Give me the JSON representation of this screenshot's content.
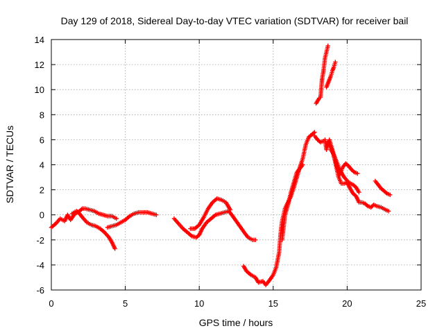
{
  "chart_data": {
    "type": "scatter",
    "title": "Day 129 of 2018, Sidereal Day-to-day VTEC variation (SDTVAR) for receiver bail",
    "xlabel": "GPS time / hours",
    "ylabel": "SDTVAR / TECUs",
    "xlim": [
      0,
      25
    ],
    "ylim": [
      -6,
      14
    ],
    "xticks": [
      "0",
      "5",
      "10",
      "15",
      "20",
      "25"
    ],
    "yticks": [
      "-6",
      "-4",
      "-2",
      "0",
      "2",
      "4",
      "6",
      "8",
      "10",
      "12",
      "14"
    ],
    "grid": true,
    "marker": "plus",
    "color": "#ff0000",
    "series": [
      {
        "name": "seg1",
        "points": [
          [
            0.0,
            -1.0
          ],
          [
            0.3,
            -0.7
          ],
          [
            0.6,
            -0.3
          ],
          [
            0.9,
            -0.5
          ],
          [
            1.1,
            0.0
          ],
          [
            1.3,
            -0.4
          ],
          [
            1.6,
            0.1
          ],
          [
            1.9,
            0.3
          ],
          [
            2.1,
            0.5
          ],
          [
            2.3,
            0.5
          ],
          [
            2.6,
            0.4
          ],
          [
            2.9,
            0.3
          ],
          [
            3.2,
            0.1
          ],
          [
            3.5,
            0.0
          ],
          [
            3.8,
            -0.1
          ],
          [
            4.1,
            -0.1
          ],
          [
            4.4,
            -0.3
          ]
        ]
      },
      {
        "name": "seg2",
        "points": [
          [
            1.4,
            0.1
          ],
          [
            1.7,
            0.3
          ],
          [
            1.9,
            0.1
          ],
          [
            2.1,
            -0.2
          ],
          [
            2.4,
            -0.6
          ],
          [
            2.7,
            -0.8
          ],
          [
            3.0,
            -0.9
          ],
          [
            3.3,
            -1.1
          ],
          [
            3.6,
            -1.4
          ],
          [
            3.9,
            -1.8
          ],
          [
            4.1,
            -2.2
          ],
          [
            4.3,
            -2.7
          ]
        ]
      },
      {
        "name": "seg3",
        "points": [
          [
            3.8,
            -1.0
          ],
          [
            4.1,
            -0.9
          ],
          [
            4.4,
            -0.8
          ],
          [
            4.7,
            -0.6
          ],
          [
            5.0,
            -0.4
          ],
          [
            5.3,
            -0.1
          ],
          [
            5.6,
            0.1
          ],
          [
            5.9,
            0.2
          ],
          [
            6.2,
            0.2
          ],
          [
            6.5,
            0.2
          ],
          [
            6.8,
            0.1
          ],
          [
            7.1,
            0.0
          ]
        ]
      },
      {
        "name": "seg4",
        "points": [
          [
            8.3,
            -0.3
          ],
          [
            8.6,
            -0.7
          ],
          [
            8.9,
            -1.1
          ],
          [
            9.2,
            -1.4
          ],
          [
            9.5,
            -1.7
          ],
          [
            9.8,
            -1.8
          ],
          [
            10.0,
            -1.6
          ],
          [
            10.2,
            -1.1
          ],
          [
            10.5,
            -0.6
          ],
          [
            10.8,
            -0.3
          ],
          [
            11.1,
            0.0
          ],
          [
            11.4,
            0.1
          ],
          [
            11.7,
            0.2
          ],
          [
            12.0,
            0.3
          ],
          [
            12.2,
            0.0
          ],
          [
            12.5,
            -0.5
          ],
          [
            12.8,
            -1.0
          ],
          [
            13.1,
            -1.5
          ],
          [
            13.3,
            -1.8
          ],
          [
            13.6,
            -2.0
          ],
          [
            13.8,
            -2.0
          ]
        ]
      },
      {
        "name": "seg5",
        "points": [
          [
            9.4,
            -1.1
          ],
          [
            9.7,
            -1.1
          ],
          [
            10.0,
            -0.8
          ],
          [
            10.3,
            -0.2
          ],
          [
            10.6,
            0.5
          ],
          [
            10.9,
            1.0
          ],
          [
            11.2,
            1.3
          ],
          [
            11.5,
            1.2
          ],
          [
            11.8,
            1.0
          ],
          [
            12.1,
            0.4
          ]
        ]
      },
      {
        "name": "seg6",
        "points": [
          [
            13.0,
            -4.1
          ],
          [
            13.2,
            -4.5
          ],
          [
            13.5,
            -4.8
          ],
          [
            13.8,
            -5.0
          ],
          [
            14.0,
            -5.4
          ],
          [
            14.3,
            -5.3
          ],
          [
            14.5,
            -5.6
          ],
          [
            14.7,
            -5.3
          ],
          [
            15.0,
            -4.8
          ],
          [
            15.2,
            -4.2
          ],
          [
            15.4,
            -3.0
          ],
          [
            15.5,
            -1.5
          ],
          [
            15.6,
            -0.5
          ],
          [
            15.8,
            0.5
          ],
          [
            16.0,
            1.0
          ],
          [
            16.2,
            1.5
          ],
          [
            16.4,
            2.2
          ],
          [
            16.6,
            3.0
          ],
          [
            16.8,
            3.8
          ],
          [
            17.0,
            4.5
          ],
          [
            17.2,
            5.6
          ],
          [
            17.4,
            6.2
          ],
          [
            17.6,
            6.4
          ],
          [
            17.8,
            6.6
          ]
        ]
      },
      {
        "name": "seg7",
        "points": [
          [
            15.6,
            -2.0
          ],
          [
            15.8,
            0.0
          ],
          [
            16.0,
            0.8
          ],
          [
            16.2,
            1.8
          ],
          [
            16.4,
            2.6
          ],
          [
            16.6,
            3.4
          ],
          [
            16.8,
            3.7
          ],
          [
            17.0,
            4.0
          ]
        ]
      },
      {
        "name": "seg8",
        "points": [
          [
            17.8,
            6.3
          ],
          [
            18.0,
            6.0
          ],
          [
            18.2,
            5.8
          ],
          [
            18.4,
            5.9
          ],
          [
            18.5,
            6.0
          ],
          [
            18.6,
            5.2
          ],
          [
            18.7,
            5.6
          ],
          [
            18.8,
            6.0
          ],
          [
            19.0,
            5.2
          ],
          [
            19.2,
            4.2
          ],
          [
            19.4,
            3.1
          ],
          [
            19.6,
            2.5
          ],
          [
            19.8,
            2.5
          ],
          [
            20.0,
            2.6
          ],
          [
            20.2,
            2.1
          ],
          [
            20.4,
            1.7
          ],
          [
            20.6,
            1.5
          ],
          [
            20.8,
            1.0
          ],
          [
            21.0,
            1.0
          ],
          [
            21.2,
            0.9
          ],
          [
            21.4,
            0.7
          ],
          [
            21.6,
            0.6
          ],
          [
            21.8,
            0.8
          ],
          [
            22.0,
            0.7
          ],
          [
            22.3,
            0.6
          ],
          [
            22.6,
            0.4
          ],
          [
            22.8,
            0.3
          ]
        ]
      },
      {
        "name": "seg9",
        "points": [
          [
            18.7,
            5.8
          ],
          [
            18.9,
            5.4
          ],
          [
            19.1,
            4.8
          ],
          [
            19.3,
            3.9
          ],
          [
            19.5,
            3.2
          ],
          [
            19.7,
            3.8
          ],
          [
            19.9,
            4.1
          ],
          [
            20.1,
            3.9
          ],
          [
            20.3,
            3.6
          ],
          [
            20.5,
            3.4
          ],
          [
            20.7,
            3.3
          ]
        ]
      },
      {
        "name": "seg10",
        "points": [
          [
            18.9,
            5.2
          ],
          [
            19.1,
            4.8
          ],
          [
            19.3,
            4.2
          ],
          [
            19.5,
            3.6
          ],
          [
            19.8,
            3.0
          ],
          [
            20.1,
            2.6
          ],
          [
            20.4,
            2.4
          ],
          [
            20.6,
            2.2
          ],
          [
            20.8,
            1.8
          ]
        ]
      },
      {
        "name": "seg11",
        "points": [
          [
            17.9,
            8.9
          ],
          [
            18.0,
            9.1
          ],
          [
            18.1,
            9.3
          ],
          [
            18.2,
            9.4
          ],
          [
            18.3,
            10.8
          ],
          [
            18.4,
            11.5
          ],
          [
            18.5,
            12.5
          ],
          [
            18.6,
            13.0
          ],
          [
            18.7,
            13.5
          ]
        ]
      },
      {
        "name": "seg12",
        "points": [
          [
            18.6,
            10.2
          ],
          [
            18.7,
            10.5
          ],
          [
            18.8,
            10.8
          ],
          [
            18.9,
            11.1
          ],
          [
            19.0,
            11.5
          ],
          [
            19.1,
            11.8
          ],
          [
            19.2,
            12.2
          ]
        ]
      },
      {
        "name": "seg13",
        "points": [
          [
            21.9,
            2.7
          ],
          [
            22.1,
            2.4
          ],
          [
            22.3,
            2.1
          ],
          [
            22.5,
            1.9
          ],
          [
            22.7,
            1.7
          ],
          [
            22.9,
            1.6
          ]
        ]
      }
    ]
  }
}
